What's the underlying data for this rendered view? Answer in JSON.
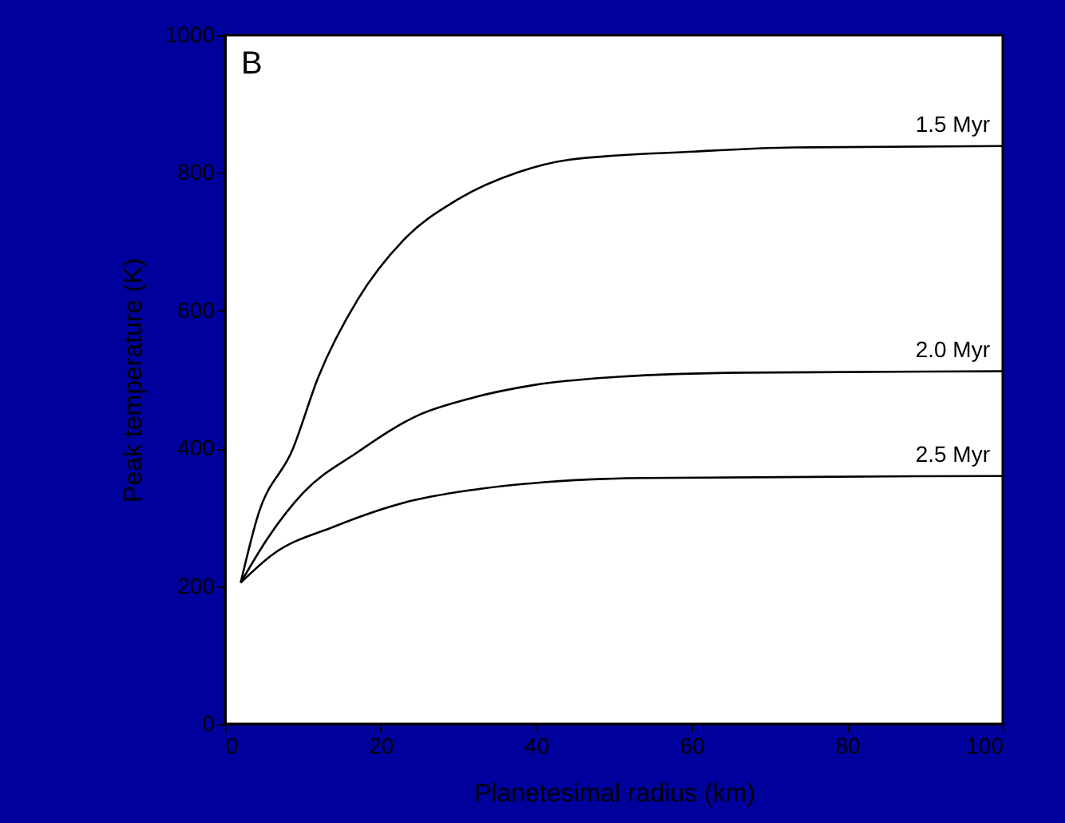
{
  "chart_data": {
    "type": "line",
    "xlabel": "Planetesimal radius (km)",
    "ylabel": "Peak temperature (K)",
    "xlim": [
      0,
      100
    ],
    "xticks": [
      0,
      20,
      40,
      60,
      80,
      100
    ],
    "ylim": [
      0,
      1000
    ],
    "yticks": [
      0,
      200,
      400,
      600,
      800,
      1000
    ],
    "grid": false,
    "marker": "none",
    "line_style": "solid",
    "series": [
      {
        "name": "1.5 Myr",
        "color": "#000000",
        "x": [
          2,
          4.2,
          8.7,
          12,
          17.1,
          22.9,
          30,
          37.7,
          44.2,
          60.3,
          73.2,
          100
        ],
        "values": [
          205,
          302,
          399,
          504,
          617,
          702,
          762,
          801,
          819,
          831,
          837,
          839
        ]
      },
      {
        "name": "2.0 Myr",
        "color": "#000000",
        "x": [
          2,
          5.5,
          10,
          17.1,
          24.8,
          31.3,
          39.7,
          50.6,
          66.8,
          100
        ],
        "values": [
          205,
          270,
          335,
          395,
          448,
          472,
          492,
          504,
          510,
          512
        ]
      },
      {
        "name": "2.5 Myr",
        "color": "#000000",
        "x": [
          2,
          6.1,
          13.9,
          23.6,
          31.3,
          41,
          53.9,
          100
        ],
        "values": [
          205,
          246,
          286,
          323,
          339,
          351,
          357,
          360
        ]
      }
    ],
    "annotations": [
      "B"
    ]
  }
}
